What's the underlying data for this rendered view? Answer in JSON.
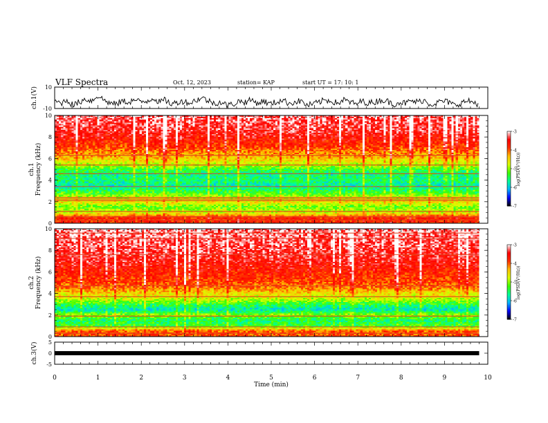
{
  "header": {
    "title": "VLF Spectra",
    "date": "Oct. 12, 2023",
    "station": "station= KAP",
    "start": "start  UT  =   17: 10: 1"
  },
  "colors": {
    "axis": "#000000",
    "colormap": [
      "#000000",
      "#0000ff",
      "#00b4ff",
      "#00ff9a",
      "#40ff00",
      "#d8ff00",
      "#ffc000",
      "#ff3000",
      "#ff0000",
      "#ffffff"
    ]
  },
  "chart_data": [
    {
      "type": "line",
      "ylabel": "ch.1(V)",
      "ylim": [
        -10,
        10
      ],
      "yticks": [
        "10",
        "-10"
      ],
      "xlim": [
        0,
        10
      ],
      "x_start_min": 0,
      "x_end_min": 9.8,
      "series": [
        {
          "values": [
            -3,
            -5,
            -2,
            -7,
            -4,
            -1,
            -3,
            2,
            -2,
            -5,
            -6,
            -3,
            -4,
            -2,
            -4,
            -3,
            0,
            -4,
            -2,
            -6,
            -4,
            -3,
            -5,
            -2,
            0,
            -3,
            -5,
            -4,
            -7,
            -6,
            -3,
            -4,
            -2,
            -5,
            -3,
            -6,
            -4,
            -2,
            -5,
            -4,
            -3,
            -7,
            -6,
            -4,
            -2,
            -3,
            -5,
            -2,
            -4,
            -6,
            -3,
            -5,
            -4,
            -2,
            -3,
            -6,
            -4,
            -5,
            -3,
            -4,
            -2,
            -6,
            -5,
            -3,
            -4,
            -7,
            -5,
            -3,
            -4,
            -6
          ]
        }
      ]
    },
    {
      "type": "heatmap",
      "ylabel": "Frequency (kHz)",
      "channel_label": "ch.1",
      "ylim": [
        0,
        10
      ],
      "yticks": [
        "0",
        "2",
        "4",
        "6",
        "8",
        "10"
      ],
      "xlim": [
        0,
        10
      ],
      "x_end_min": 9.8,
      "colorbar": {
        "label": "log(PSD(V²/Hz))",
        "min": -7,
        "max": -3,
        "ticks": [
          "-3",
          "-4",
          "-5",
          "-6",
          "-7"
        ]
      },
      "band_profile": [
        {
          "f_khz": 0.5,
          "log_psd": -3.8
        },
        {
          "f_khz": 1.0,
          "log_psd": -4.8
        },
        {
          "f_khz": 1.5,
          "log_psd": -5.2
        },
        {
          "f_khz": 2.0,
          "log_psd": -4.6
        },
        {
          "f_khz": 2.5,
          "log_psd": -5.0
        },
        {
          "f_khz": 3.0,
          "log_psd": -5.5
        },
        {
          "f_khz": 3.5,
          "log_psd": -5.8
        },
        {
          "f_khz": 4.0,
          "log_psd": -5.6
        },
        {
          "f_khz": 4.5,
          "log_psd": -5.7
        },
        {
          "f_khz": 5.0,
          "log_psd": -5.4
        },
        {
          "f_khz": 5.5,
          "log_psd": -4.9
        },
        {
          "f_khz": 6.0,
          "log_psd": -4.5
        },
        {
          "f_khz": 6.5,
          "log_psd": -4.3
        },
        {
          "f_khz": 7.0,
          "log_psd": -4.0
        },
        {
          "f_khz": 8.0,
          "log_psd": -3.7
        },
        {
          "f_khz": 9.0,
          "log_psd": -3.5
        },
        {
          "f_khz": 10.0,
          "log_psd": -3.4
        }
      ],
      "lines_khz": [
        0.3,
        0.6,
        1.1,
        2.1,
        2.25,
        2.4,
        3.4,
        4.6,
        5.4,
        6.3
      ]
    },
    {
      "type": "heatmap",
      "ylabel": "Frequency (kHz)",
      "channel_label": "ch.2",
      "ylim": [
        0,
        10
      ],
      "yticks": [
        "0",
        "2",
        "4",
        "6",
        "8",
        "10"
      ],
      "xlim": [
        0,
        10
      ],
      "x_end_min": 9.8,
      "colorbar": {
        "label": "log(PSD(V²/Hz))",
        "min": -7,
        "max": -3,
        "ticks": [
          "-3",
          "-4",
          "-5",
          "-6",
          "-7"
        ]
      },
      "band_profile": [
        {
          "f_khz": 0.5,
          "log_psd": -4.0
        },
        {
          "f_khz": 1.0,
          "log_psd": -5.3
        },
        {
          "f_khz": 1.5,
          "log_psd": -5.6
        },
        {
          "f_khz": 2.0,
          "log_psd": -5.0
        },
        {
          "f_khz": 2.5,
          "log_psd": -5.9
        },
        {
          "f_khz": 3.0,
          "log_psd": -5.4
        },
        {
          "f_khz": 3.5,
          "log_psd": -4.9
        },
        {
          "f_khz": 4.0,
          "log_psd": -4.6
        },
        {
          "f_khz": 4.5,
          "log_psd": -4.2
        },
        {
          "f_khz": 5.0,
          "log_psd": -4.0
        },
        {
          "f_khz": 6.0,
          "log_psd": -3.8
        },
        {
          "f_khz": 7.0,
          "log_psd": -3.6
        },
        {
          "f_khz": 8.0,
          "log_psd": -3.5
        },
        {
          "f_khz": 9.0,
          "log_psd": -3.4
        },
        {
          "f_khz": 10.0,
          "log_psd": -3.3
        }
      ],
      "lines_khz": [
        0.3,
        0.9,
        1.9,
        3.7,
        4.7,
        7.6,
        9.1,
        9.6
      ]
    },
    {
      "type": "line",
      "ylabel": "ch.3(V)",
      "ylim": [
        -5,
        5
      ],
      "yticks": [
        "5",
        "0",
        "-5"
      ],
      "xlim": [
        0,
        10
      ],
      "x_end_min": 9.8,
      "series": [
        {
          "values": [
            0
          ]
        }
      ]
    }
  ],
  "x_axis": {
    "label": "Time (min)",
    "ticks": [
      "0",
      "1",
      "2",
      "3",
      "4",
      "5",
      "6",
      "7",
      "8",
      "9",
      "10"
    ]
  }
}
